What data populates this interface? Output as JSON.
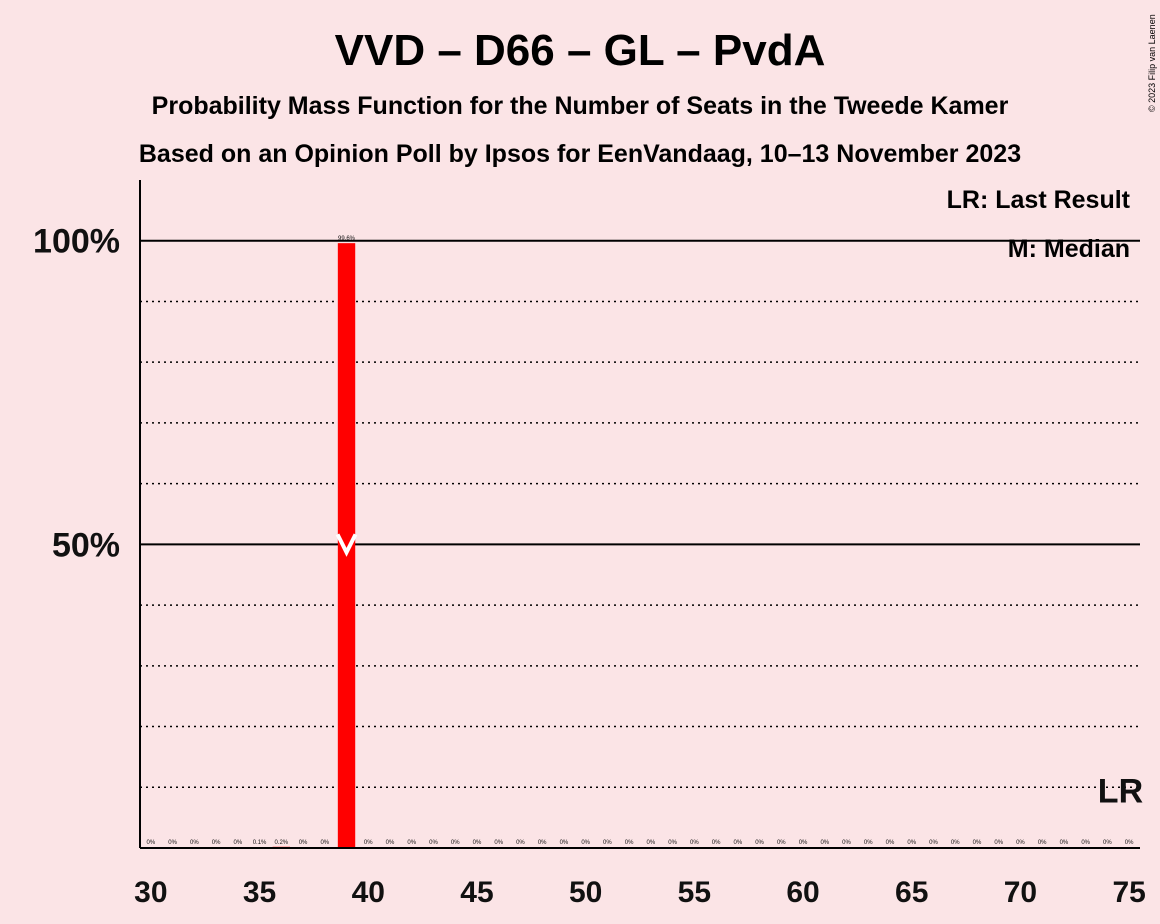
{
  "chart_data": {
    "type": "bar",
    "title": "VVD – D66 – GL – PvdA",
    "subtitle_1": "Probability Mass Function for the Number of Seats in the Tweede Kamer",
    "subtitle_2": "Based on an Opinion Poll by Ipsos for EenVandaag, 10–13 November 2023",
    "x": [
      30,
      31,
      32,
      33,
      34,
      35,
      36,
      37,
      38,
      39,
      40,
      41,
      42,
      43,
      44,
      45,
      46,
      47,
      48,
      49,
      50,
      51,
      52,
      53,
      54,
      55,
      56,
      57,
      58,
      59,
      60,
      61,
      62,
      63,
      64,
      65,
      66,
      67,
      68,
      69,
      70,
      71,
      72,
      73,
      74,
      75
    ],
    "values": [
      0,
      0,
      0,
      0,
      0,
      0.1,
      0.2,
      0,
      0,
      99.6,
      0,
      0,
      0,
      0,
      0,
      0,
      0,
      0,
      0,
      0,
      0,
      0,
      0,
      0,
      0,
      0,
      0,
      0,
      0,
      0,
      0,
      0,
      0,
      0,
      0,
      0,
      0,
      0,
      0,
      0,
      0,
      0,
      0,
      0,
      0,
      0
    ],
    "value_labels": [
      "0%",
      "0%",
      "0%",
      "0%",
      "0%",
      "0.1%",
      "0.2%",
      "0%",
      "0%",
      "99.6%",
      "0%",
      "0%",
      "0%",
      "0%",
      "0%",
      "0%",
      "0%",
      "0%",
      "0%",
      "0%",
      "0%",
      "0%",
      "0%",
      "0%",
      "0%",
      "0%",
      "0%",
      "0%",
      "0%",
      "0%",
      "0%",
      "0%",
      "0%",
      "0%",
      "0%",
      "0%",
      "0%",
      "0%",
      "0%",
      "0%",
      "0%",
      "0%",
      "0%",
      "0%",
      "0%",
      "0%"
    ],
    "xticks": [
      30,
      35,
      40,
      45,
      50,
      55,
      60,
      65,
      70,
      75
    ],
    "xtick_labels": [
      "30",
      "35",
      "40",
      "45",
      "50",
      "55",
      "60",
      "65",
      "70",
      "75"
    ],
    "yticks": [
      50,
      100
    ],
    "ytick_labels": [
      "50%",
      "100%"
    ],
    "ylim": [
      0,
      110
    ],
    "xlim": [
      29.5,
      75.5
    ],
    "grid": "dotted every 10%",
    "median": 39,
    "median_marker": "M",
    "last_result": 75,
    "last_result_marker": "LR",
    "legend": [
      "LR: Last Result",
      "M: Median"
    ],
    "legend_position": "top-right",
    "bar_color": "#ff0000",
    "copyright": "© 2023 Filip van Laenen"
  }
}
